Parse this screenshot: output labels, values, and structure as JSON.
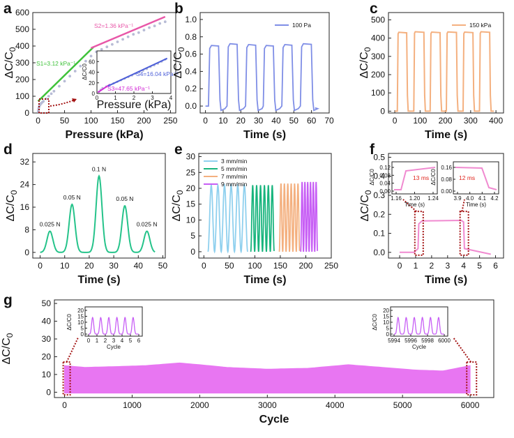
{
  "figure": {
    "panel_letters": [
      "a",
      "b",
      "c",
      "d",
      "e",
      "f",
      "g"
    ],
    "colors": {
      "green": "#3fc23a",
      "pink": "#e857a8",
      "gray_points": "#b8bcd6",
      "blue": "#7f8ee6",
      "blue_dark": "#4d5fd8",
      "magenta": "#d22ad6",
      "orange": "#f4b07f",
      "teal": "#25c38a",
      "skyblue": "#8fd0ee",
      "green2": "#18b47d",
      "purple": "#c75ef5",
      "lightpink": "#f08ad0",
      "fill_g": "#e876f2",
      "red_dotted": "#a31212",
      "red_text": "#e0261f"
    }
  },
  "chart_data": [
    {
      "id": "a",
      "type": "scatter",
      "xlabel": "Pressure (kPa)",
      "ylabel": "ΔC/C0",
      "xlim": [
        -10,
        260
      ],
      "ylim": [
        0,
        600
      ],
      "xticks": [
        "0",
        "50",
        "100",
        "150",
        "200",
        "250"
      ],
      "yticks": [
        "0",
        "100",
        "200",
        "300",
        "400",
        "500",
        "600"
      ],
      "series": [
        {
          "name": "data",
          "x": [
            0.3,
            0.7,
            1.2,
            1.8,
            2.5,
            3.2,
            4,
            5,
            6,
            8,
            10,
            15,
            20,
            25,
            30,
            40,
            50,
            60,
            70,
            80,
            90,
            100,
            110,
            120,
            130,
            140,
            150,
            160,
            170,
            180,
            190,
            200,
            210,
            220,
            230,
            240
          ],
          "values": [
            8,
            18,
            28,
            36,
            42,
            46,
            50,
            55,
            58,
            64,
            70,
            85,
            100,
            115,
            130,
            160,
            190,
            220,
            250,
            280,
            310,
            340,
            365,
            380,
            395,
            410,
            425,
            440,
            455,
            470,
            480,
            495,
            510,
            520,
            535,
            545
          ]
        },
        {
          "name": "fit_S1",
          "x": [
            0,
            105
          ],
          "values": [
            70,
            395
          ]
        },
        {
          "name": "fit_S2",
          "x": [
            100,
            240
          ],
          "values": [
            388,
            575
          ]
        }
      ],
      "annotations": {
        "s1": "S1=3.12 kPa⁻¹",
        "s2": "S2=1.36 kPa⁻¹"
      },
      "inset": {
        "xlabel": "Pressure (kPa)",
        "ylabel": "ΔC/C0",
        "xlim": [
          0,
          4
        ],
        "ylim": [
          0,
          80
        ],
        "xticks": [
          "0",
          "1",
          "2",
          "3",
          "4"
        ],
        "yticks": [
          "0",
          "20",
          "40",
          "60"
        ],
        "x": [
          0.1,
          0.2,
          0.3,
          0.5,
          0.7,
          0.9,
          1.1,
          1.3,
          1.5,
          1.7,
          1.9,
          2.1,
          2.3,
          2.5,
          2.7,
          2.9,
          3.1,
          3.3,
          3.5,
          3.7
        ],
        "values": [
          3,
          7,
          10,
          13,
          16,
          19,
          22,
          25,
          28,
          31,
          34,
          37,
          40,
          43,
          46,
          50,
          53,
          56,
          60,
          64
        ],
        "s3": "S3=47.65 kPa⁻¹",
        "s4": "S4=16.04 kPa⁻¹"
      }
    },
    {
      "id": "b",
      "type": "line",
      "xlabel": "Time (s)",
      "ylabel": "ΔC/C0",
      "xlim": [
        -3,
        70
      ],
      "ylim": [
        -0.08,
        1.08
      ],
      "xticks": [
        "0",
        "10",
        "20",
        "30",
        "40",
        "50",
        "60",
        "70"
      ],
      "yticks": [
        "0.0",
        "0.2",
        "0.4",
        "0.6",
        "0.8",
        "1.0"
      ],
      "legend": "100 Pa",
      "cycles": [
        {
          "on": 2,
          "off": 8,
          "peak": 0.7
        },
        {
          "on": 12.5,
          "off": 18.5,
          "peak": 0.72
        },
        {
          "on": 23,
          "off": 29,
          "peak": 0.71
        },
        {
          "on": 33,
          "off": 39,
          "peak": 0.7
        },
        {
          "on": 43.5,
          "off": 49.5,
          "peak": 0.71
        },
        {
          "on": 54,
          "off": 60.5,
          "peak": 0.72
        }
      ]
    },
    {
      "id": "c",
      "type": "line",
      "xlabel": "Time (s)",
      "ylabel": "ΔC/C0",
      "xlim": [
        -25,
        430
      ],
      "ylim": [
        -10,
        540
      ],
      "xticks": [
        "0",
        "100",
        "200",
        "300",
        "400"
      ],
      "yticks": [
        "0",
        "100",
        "200",
        "300",
        "400",
        "500"
      ],
      "legend": "150 kPa",
      "cycles": [
        {
          "on": 10,
          "off": 50,
          "peak": 432
        },
        {
          "on": 75,
          "off": 118,
          "peak": 435
        },
        {
          "on": 140,
          "off": 182,
          "peak": 433
        },
        {
          "on": 204,
          "off": 247,
          "peak": 434
        },
        {
          "on": 270,
          "off": 312,
          "peak": 433
        },
        {
          "on": 335,
          "off": 378,
          "peak": 435
        }
      ]
    },
    {
      "id": "d",
      "type": "line",
      "xlabel": "Time (s)",
      "ylabel": "ΔC/C0",
      "xlim": [
        -3,
        51
      ],
      "ylim": [
        -2,
        35
      ],
      "xticks": [
        "0",
        "10",
        "20",
        "30",
        "40",
        "50"
      ],
      "yticks": [
        "0",
        "8",
        "16",
        "24",
        "32"
      ],
      "peaks": [
        {
          "t": 4,
          "value": 7.5,
          "label": "0.025 N"
        },
        {
          "t": 13,
          "value": 17,
          "label": "0.05 N"
        },
        {
          "t": 24,
          "value": 27,
          "label": "0.1 N"
        },
        {
          "t": 34.5,
          "value": 16.5,
          "label": "0.05 N"
        },
        {
          "t": 43.5,
          "value": 7.5,
          "label": "0.025 N"
        }
      ]
    },
    {
      "id": "e",
      "type": "line",
      "xlabel": "Time (s)",
      "ylabel": "ΔC/C0",
      "xlim": [
        -10,
        250
      ],
      "ylim": [
        -2,
        31
      ],
      "xticks": [
        "0",
        "50",
        "100",
        "150",
        "200",
        "250"
      ],
      "yticks": [
        "0",
        "5",
        "10",
        "15",
        "20",
        "25",
        "30"
      ],
      "series": [
        {
          "name": "3 mm/min",
          "t0": 8,
          "t1": 86,
          "n": 6,
          "peak": 21
        },
        {
          "name": "5 mm/min",
          "t0": 92,
          "t1": 138,
          "n": 6,
          "peak": 21
        },
        {
          "name": "7 mm/min",
          "t0": 148,
          "t1": 188,
          "n": 6,
          "peak": 21.5
        },
        {
          "name": "9 mm/min",
          "t0": 190,
          "t1": 223,
          "n": 6,
          "peak": 22
        }
      ]
    },
    {
      "id": "f",
      "type": "line",
      "xlabel": "Time (s)",
      "ylabel": "ΔC/C0",
      "xlim": [
        -0.7,
        6.5
      ],
      "ylim": [
        -0.03,
        0.52
      ],
      "xticks": [
        "0",
        "1",
        "2",
        "3",
        "4",
        "5",
        "6"
      ],
      "yticks": [
        "0.0",
        "0.1",
        "0.2",
        "0.3",
        "0.4",
        "0.5"
      ],
      "x": [
        0,
        0.9,
        1.15,
        1.2,
        1.4,
        3.85,
        4.0,
        4.05,
        5.7
      ],
      "values": [
        0,
        0,
        0.02,
        0.15,
        0.165,
        0.168,
        0.16,
        0.02,
        -0.01
      ],
      "inset1": {
        "xticks": [
          "1.16",
          "1.20",
          "1.24"
        ],
        "yticks": [
          "0.00",
          "0.04",
          "0.08",
          "0.12"
        ],
        "xlabel": "Time (s)",
        "ylabel": "ΔC/C0",
        "label": "13 ms"
      },
      "inset2": {
        "xticks": [
          "3.9",
          "4.0",
          "4.1",
          "4.2"
        ],
        "yticks": [
          "0.00",
          "0.08",
          "0.16"
        ],
        "xlabel": "Time (s)",
        "ylabel": "ΔC/C0",
        "label": "12 ms"
      }
    },
    {
      "id": "g",
      "type": "area",
      "xlabel": "Cycle",
      "ylabel": "ΔC/C0",
      "xlim": [
        -150,
        6350
      ],
      "ylim": [
        -3,
        52
      ],
      "xticks": [
        "0",
        "1000",
        "2000",
        "3000",
        "4000",
        "5000",
        "6000"
      ],
      "yticks": [
        "0",
        "10",
        "20",
        "30",
        "40",
        "50"
      ],
      "x": [
        0,
        300,
        800,
        1200,
        1700,
        2000,
        2400,
        3000,
        3600,
        4200,
        4700,
        5200,
        5600,
        6000
      ],
      "values": [
        15,
        14,
        14.5,
        15,
        16.5,
        15.5,
        14,
        13,
        13.5,
        15.5,
        14,
        12.5,
        12,
        15
      ],
      "inset1": {
        "xticks": [
          "0",
          "1",
          "2",
          "3",
          "4",
          "5",
          "6"
        ],
        "yticks": [
          "0",
          "5",
          "10",
          "15",
          "20"
        ],
        "xlabel": "Cycle",
        "ylabel": "ΔC/C0"
      },
      "inset2": {
        "xticks": [
          "5994",
          "5996",
          "5998",
          "6000"
        ],
        "yticks": [
          "0",
          "5",
          "10",
          "15",
          "20"
        ],
        "xlabel": "Cycle",
        "ylabel": "ΔC/C0"
      }
    }
  ]
}
